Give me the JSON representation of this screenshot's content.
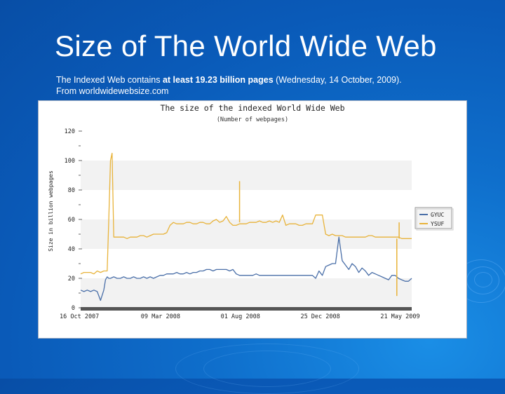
{
  "slide": {
    "title": "Size of The World Wide Web",
    "subtitle_pre": "The Indexed Web contains ",
    "subtitle_bold": "at least 19.23 billion pages",
    "subtitle_post": " (Wednesday, 14 October, 2009).",
    "source": "From worldwidewebsize.com"
  },
  "colors": {
    "gyuc": "#4a6fa8",
    "ysuf": "#e8b33a",
    "slide_bg": "#0f6fcc"
  },
  "chart_data": {
    "type": "line",
    "title": "The size of the indexed World Wide Web",
    "subtitle": "(Number of webpages)",
    "ylabel": "Size in billion webpages",
    "ylim": [
      0,
      120
    ],
    "yticks": [
      "0",
      "20",
      "40",
      "60",
      "80",
      "100",
      "120"
    ],
    "xticks": [
      "16 Oct 2007",
      "09 Mar 2008",
      "01 Aug 2008",
      "25 Dec 2008",
      "21 May 2009"
    ],
    "x_range": [
      0,
      100
    ],
    "legend": {
      "placement": "right",
      "entries": [
        "GYUC",
        "YSUF"
      ]
    },
    "grid": "horizontal bands",
    "series": [
      {
        "name": "GYUC",
        "x": [
          0,
          1,
          2,
          3,
          4,
          5,
          6,
          7,
          7.5,
          8,
          8.5,
          9,
          10,
          11,
          12,
          13,
          14,
          15,
          16,
          17,
          18,
          19,
          20,
          21,
          22,
          23,
          24,
          25,
          26,
          27,
          28,
          29,
          30,
          31,
          32,
          33,
          34,
          35,
          36,
          37,
          38,
          39,
          40,
          41,
          42,
          43,
          44,
          45,
          46,
          47,
          48,
          49,
          50,
          51,
          52,
          53,
          54,
          55,
          56,
          57,
          58,
          59,
          60,
          61,
          62,
          63,
          64,
          65,
          66,
          67,
          68,
          69,
          70,
          71,
          72,
          73,
          74,
          75,
          76,
          77,
          78,
          79,
          80,
          81,
          82,
          83,
          84,
          85,
          86,
          87,
          88,
          89,
          90,
          91,
          92,
          93,
          94,
          95,
          96,
          97,
          98,
          99,
          100
        ],
        "values": [
          12,
          11,
          12,
          11,
          12,
          11,
          5,
          12,
          19,
          21,
          20,
          20,
          21,
          20,
          20,
          21,
          20,
          20,
          21,
          20,
          20,
          21,
          20,
          21,
          20,
          21,
          22,
          22,
          23,
          23,
          23,
          24,
          23,
          23,
          24,
          23,
          24,
          24,
          25,
          25,
          26,
          26,
          25,
          26,
          26,
          26,
          26,
          25,
          26,
          23,
          22,
          22,
          22,
          22,
          22,
          23,
          22,
          22,
          22,
          22,
          22,
          22,
          22,
          22,
          22,
          22,
          22,
          22,
          22,
          22,
          22,
          22,
          22,
          20,
          25,
          22,
          28,
          29,
          30,
          30,
          48,
          32,
          29,
          26,
          30,
          28,
          24,
          27,
          25,
          22,
          24,
          23,
          22,
          21,
          20,
          19,
          22,
          22,
          20,
          19,
          18,
          18,
          20
        ]
      },
      {
        "name": "YSUF",
        "x": [
          0,
          1,
          2,
          3,
          4,
          5,
          6,
          7,
          8,
          8.5,
          9,
          9.5,
          10,
          10.5,
          11,
          12,
          13,
          14,
          15,
          16,
          17,
          18,
          19,
          20,
          21,
          22,
          23,
          24,
          25,
          26,
          27,
          28,
          29,
          30,
          31,
          32,
          33,
          34,
          35,
          36,
          37,
          38,
          39,
          40,
          41,
          42,
          43,
          44,
          45,
          46,
          47,
          48,
          49,
          50,
          51,
          52,
          53,
          54,
          55,
          56,
          57,
          58,
          59,
          60,
          61,
          62,
          63,
          64,
          65,
          66,
          67,
          68,
          69,
          70,
          71,
          72,
          73,
          74,
          75,
          76,
          77,
          78,
          79,
          80,
          81,
          82,
          83,
          84,
          85,
          86,
          87,
          88,
          89,
          90,
          91,
          92,
          93,
          94,
          95,
          96,
          97,
          97.5,
          98,
          99,
          100
        ],
        "values": [
          23,
          24,
          24,
          24,
          23,
          25,
          24,
          25,
          25,
          60,
          100,
          105,
          48,
          48,
          48,
          48,
          48,
          47,
          48,
          48,
          48,
          49,
          49,
          48,
          49,
          50,
          50,
          50,
          50,
          51,
          56,
          58,
          57,
          57,
          57,
          58,
          58,
          57,
          57,
          58,
          58,
          57,
          57,
          59,
          60,
          58,
          59,
          62,
          58,
          56,
          56,
          57,
          57,
          57,
          58,
          58,
          58,
          59,
          58,
          58,
          59,
          58,
          59,
          58,
          63,
          56,
          57,
          57,
          57,
          56,
          56,
          57,
          57,
          57,
          63,
          63,
          63,
          50,
          49,
          50,
          49,
          49,
          49,
          48,
          48,
          48,
          48,
          48,
          48,
          48,
          49,
          49,
          48,
          48,
          48,
          48,
          48,
          48,
          48,
          48,
          47,
          47,
          47,
          47,
          47
        ]
      }
    ],
    "spikes": [
      {
        "series": "YSUF",
        "x": 48,
        "value": 86
      },
      {
        "series": "YSUF",
        "x": 95.5,
        "value": 8
      },
      {
        "series": "YSUF",
        "x": 96.2,
        "value": 47
      }
    ]
  }
}
